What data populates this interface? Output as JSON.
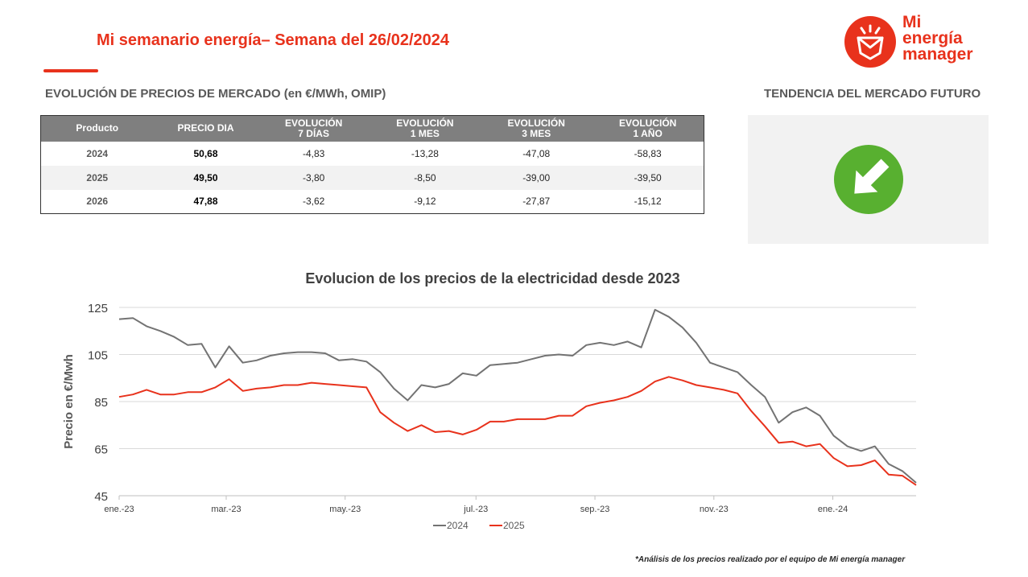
{
  "header": {
    "title": "Mi semanario energía– Semana del 26/02/2024",
    "logo_text": [
      "Mi",
      "energía",
      "manager"
    ]
  },
  "section_market": "EVOLUCIÓN DE PRECIOS DE MERCADO (en €/MWh, OMIP)",
  "section_trend": "TENDENCIA DEL MERCADO FUTURO",
  "table": {
    "headers": [
      [
        "Producto"
      ],
      [
        "PRECIO DIA"
      ],
      [
        "EVOLUCIÓN",
        "7 DÍAS"
      ],
      [
        "EVOLUCIÓN",
        "1 MES"
      ],
      [
        "EVOLUCIÓN",
        "3 MES"
      ],
      [
        "EVOLUCIÓN",
        "1 AÑO"
      ]
    ],
    "rows": [
      [
        "2024",
        "50,68",
        "-4,83",
        "-13,28",
        "-47,08",
        "-58,83"
      ],
      [
        "2025",
        "49,50",
        "-3,80",
        "-8,50",
        "-39,00",
        "-39,50"
      ],
      [
        "2026",
        "47,88",
        "-3,62",
        "-9,12",
        "-27,87",
        "-15,12"
      ]
    ]
  },
  "trend": {
    "direction": "down",
    "icon": "arrow-down-right-icon",
    "color": "#58b030"
  },
  "colors": {
    "accent": "#e8321c",
    "series_2024": "#737373",
    "series_2025": "#e8321c",
    "table_header": "#7f7f7f"
  },
  "chart_data": {
    "type": "line",
    "title": "Evolucion de los precios de la electricidad desde 2023",
    "ylabel": "Precio en €/Mwh",
    "xlabel": "",
    "ylim": [
      45,
      125
    ],
    "yticks": [
      125,
      105,
      85,
      65,
      45
    ],
    "x_labels": [
      "ene.-23",
      "mar.-23",
      "may.-23",
      "jul.-23",
      "sep.-23",
      "nov.-23",
      "ene.-24"
    ],
    "x_label_positions": [
      0,
      9,
      19,
      30,
      40,
      50,
      60
    ],
    "x_count": 68,
    "legend": "bottom",
    "grid": true,
    "series": [
      {
        "name": "2024",
        "color": "#737373",
        "values": [
          120,
          120.5,
          117,
          115,
          112.5,
          109,
          109.5,
          99.5,
          108.5,
          101.5,
          102.5,
          104.5,
          105.5,
          106,
          106,
          105.5,
          102.5,
          103,
          102,
          97.5,
          90.5,
          85.5,
          92,
          91,
          92.5,
          97,
          96,
          100.5,
          101,
          101.5,
          103,
          104.5,
          105,
          104.5,
          109,
          110,
          109,
          110.5,
          108,
          124,
          121,
          116.5,
          110,
          101.5,
          99.5,
          97.5,
          92,
          87,
          76,
          80.5,
          82.5,
          79,
          70.5,
          66,
          64,
          66,
          58.5,
          55.5,
          50.5
        ]
      },
      {
        "name": "2025",
        "color": "#e8321c",
        "values": [
          87,
          88,
          90,
          88,
          88,
          89,
          89,
          91,
          94.5,
          89.5,
          90.5,
          91,
          92,
          92,
          93,
          92.5,
          92,
          91.5,
          91,
          80.5,
          76,
          72.5,
          75,
          72,
          72.5,
          71,
          73,
          76.5,
          76.5,
          77.5,
          77.5,
          77.5,
          79,
          79,
          83,
          84.5,
          85.5,
          87,
          89.5,
          93.5,
          95.5,
          94,
          92,
          91,
          90,
          88.5,
          81,
          74.5,
          67.5,
          68,
          66,
          67,
          61,
          57.5,
          58,
          60,
          54,
          53.5,
          49.5
        ]
      }
    ]
  },
  "footnote": "*Análisis de los precios realizado por el equipo de Mi energía manager"
}
